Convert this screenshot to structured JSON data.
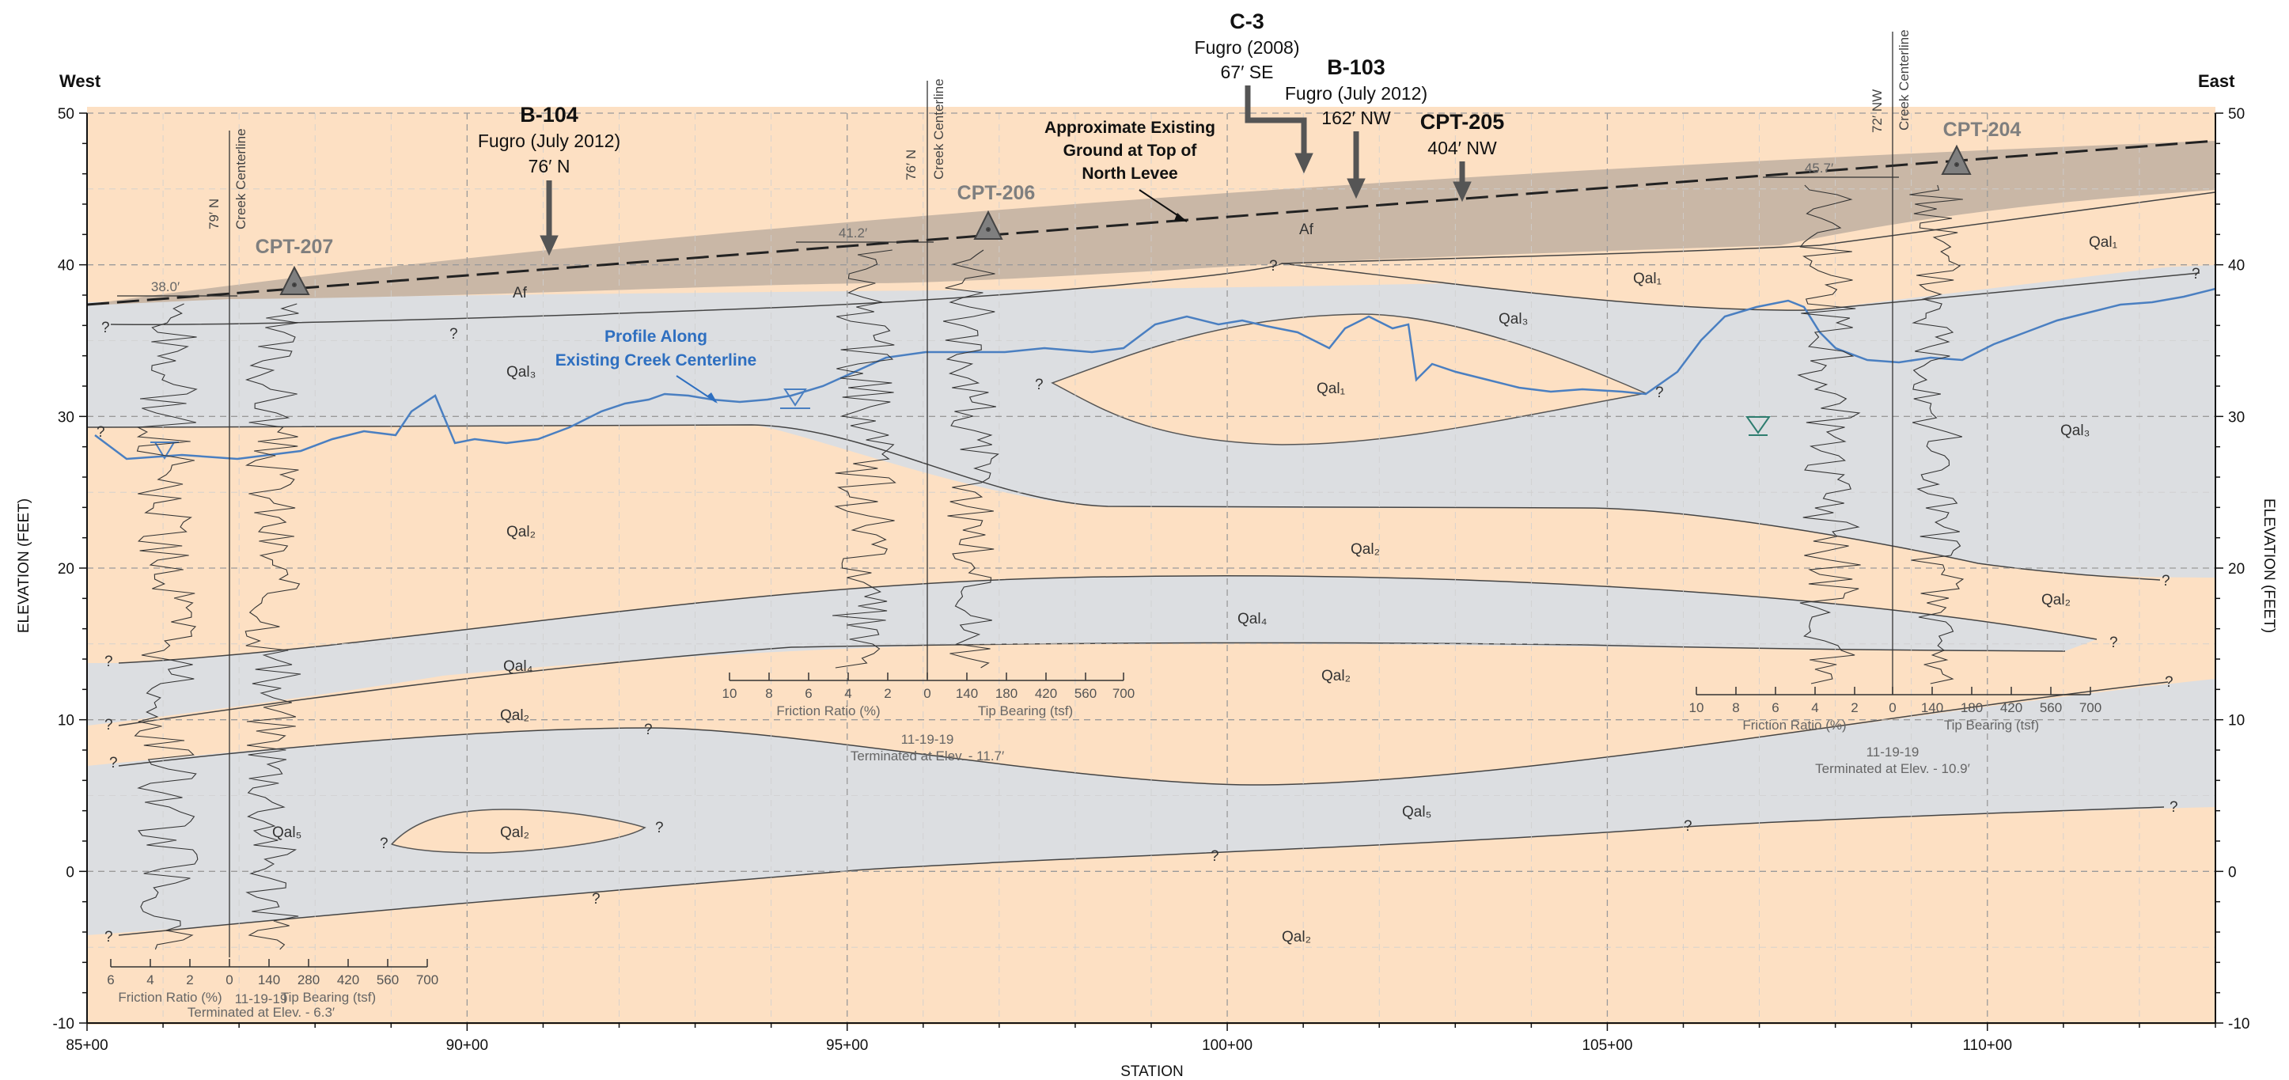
{
  "directions": {
    "west": "West",
    "east": "East"
  },
  "axes": {
    "x_title": "STATION",
    "y_title_left": "ELEVATION (FEET)",
    "y_title_right": "ELEVATION (FEET)",
    "x_ticks": [
      {
        "station": 8500,
        "label": "85+00"
      },
      {
        "station": 9000,
        "label": "90+00"
      },
      {
        "station": 9500,
        "label": "95+00"
      },
      {
        "station": 10000,
        "label": "100+00"
      },
      {
        "station": 10500,
        "label": "105+00"
      },
      {
        "station": 11000,
        "label": "110+00"
      }
    ],
    "y_ticks": [
      {
        "elev": 50,
        "label": "50"
      },
      {
        "elev": 40,
        "label": "40"
      },
      {
        "elev": 30,
        "label": "30"
      },
      {
        "elev": 20,
        "label": "20"
      },
      {
        "elev": 10,
        "label": "10"
      },
      {
        "elev": 0,
        "label": "0"
      },
      {
        "elev": -10,
        "label": "-10"
      }
    ],
    "x_range": [
      8500,
      11300
    ],
    "y_range": [
      -10,
      50
    ]
  },
  "colors": {
    "fill": "#a09080",
    "sand": "#fde0c3",
    "clay": "#dcdee1",
    "creek_profile": "#4a7fc1",
    "label_blue": "#2e6fc0",
    "cpt_gray": "#7f7f7f",
    "water_teal": "#2e7d6f"
  },
  "borings": [
    {
      "id": "c3",
      "title": "C-3",
      "line1": "Fugro (2008)",
      "line2": "67′ SE"
    },
    {
      "id": "b104",
      "title": "B-104",
      "line1": "Fugro (July 2012)",
      "line2": "76′ N"
    },
    {
      "id": "b103",
      "title": "B-103",
      "line1": "Fugro (July 2012)",
      "line2": "162′ NW"
    },
    {
      "id": "cpt205",
      "title": "CPT-205",
      "line1": "404′ NW",
      "line2": ""
    }
  ],
  "annotations": {
    "levee": [
      "Approximate Existing",
      "Ground at Top of",
      "North Levee"
    ],
    "creek_profile": [
      "Profile Along",
      "Existing Creek Centerline"
    ]
  },
  "cpts": [
    {
      "id": "cpt207",
      "name": "CPT-207",
      "offset": "79′ N",
      "centerline": "Creek Centerline",
      "ground": "38.0′",
      "axis_fr": [
        "6",
        "4",
        "2",
        "0"
      ],
      "axis_tb": [
        "140",
        "280",
        "420",
        "560",
        "700"
      ],
      "fr_label": "Friction Ratio (%)",
      "tb_label": "Tip Bearing (tsf)",
      "date": "11-19-19",
      "terminated": "Terminated at Elev. - 6.3′"
    },
    {
      "id": "cpt206",
      "name": "CPT-206",
      "offset": "76′ N",
      "centerline": "Creek Centerline",
      "ground": "41.2′",
      "axis_fr": [
        "10",
        "8",
        "6",
        "4",
        "2",
        "0"
      ],
      "axis_tb": [
        "140",
        "180",
        "420",
        "560",
        "700"
      ],
      "fr_label": "Friction Ratio (%)",
      "tb_label": "Tip Bearing (tsf)",
      "date": "11-19-19",
      "terminated": "Terminated at Elev. - 11.7′"
    },
    {
      "id": "cpt204",
      "name": "CPT-204",
      "offset": "72′ NW",
      "centerline": "Creek Centerline",
      "ground": "45.7′",
      "axis_fr": [
        "10",
        "8",
        "6",
        "4",
        "2",
        "0"
      ],
      "axis_tb": [
        "140",
        "180",
        "420",
        "560",
        "700"
      ],
      "fr_label": "Friction Ratio (%)",
      "tb_label": "Tip Bearing (tsf)",
      "date": "11-19-19",
      "terminated": "Terminated at Elev. - 10.9′"
    }
  ],
  "units": {
    "af": "Af",
    "qal1": "Qal₁",
    "qal2": "Qal₂",
    "qal3": "Qal₃",
    "qal4": "Qal₄",
    "qal5": "Qal₅",
    "q": "?"
  }
}
